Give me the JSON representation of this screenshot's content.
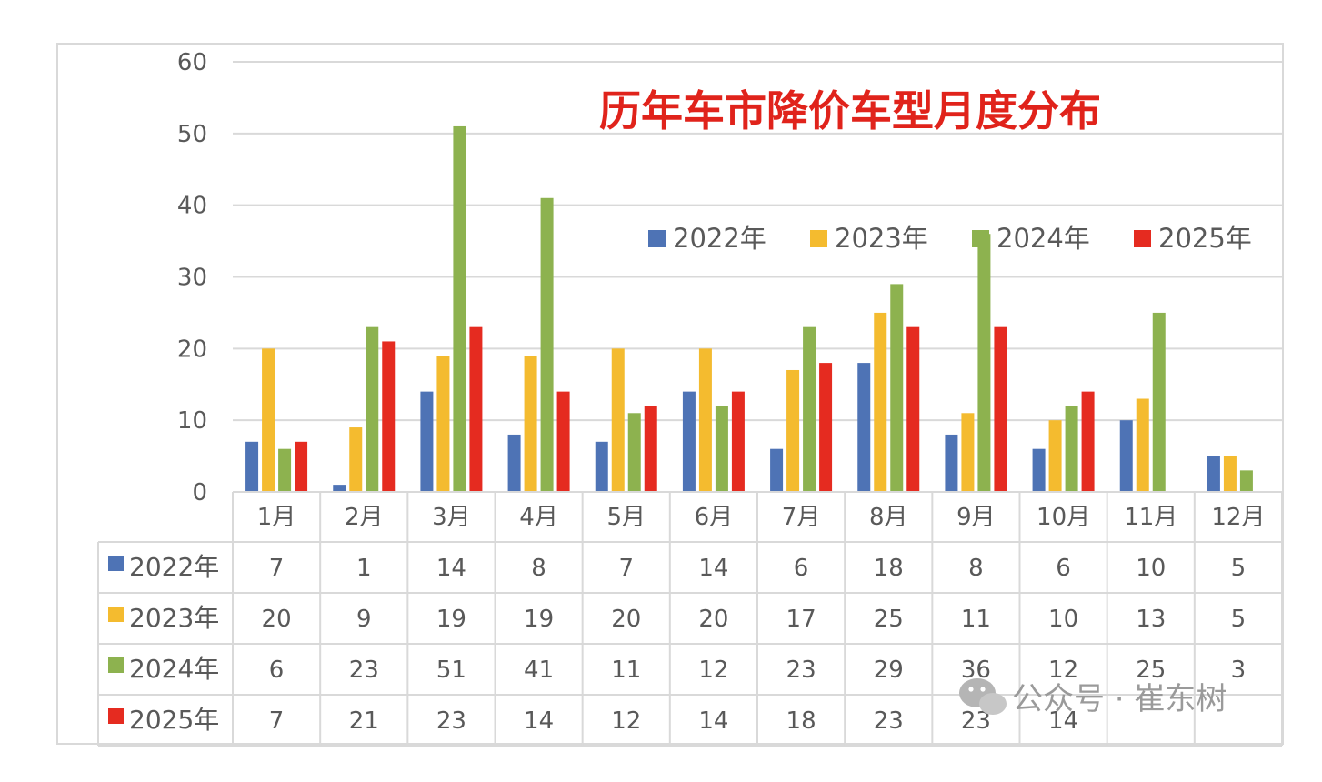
{
  "chart_data": {
    "type": "bar",
    "title": "历年车市降价车型月度分布",
    "categories": [
      "1月",
      "2月",
      "3月",
      "4月",
      "5月",
      "6月",
      "7月",
      "8月",
      "9月",
      "10月",
      "11月",
      "12月"
    ],
    "ylim": [
      0,
      60
    ],
    "yticks": [
      "0",
      "10",
      "20",
      "30",
      "40",
      "50",
      "60"
    ],
    "grid": true,
    "legend_position": "top-right",
    "series": [
      {
        "name": "2022年",
        "color": "#4e73b5",
        "values": [
          7,
          1,
          14,
          8,
          7,
          14,
          6,
          18,
          8,
          6,
          10,
          5
        ]
      },
      {
        "name": "2023年",
        "color": "#f4bb2f",
        "values": [
          20,
          9,
          19,
          19,
          20,
          20,
          17,
          25,
          11,
          10,
          13,
          5
        ]
      },
      {
        "name": "2024年",
        "color": "#8db24f",
        "values": [
          6,
          23,
          51,
          41,
          11,
          12,
          23,
          29,
          36,
          12,
          25,
          3
        ]
      },
      {
        "name": "2025年",
        "color": "#e52b20",
        "values": [
          7,
          21,
          23,
          14,
          12,
          14,
          18,
          23,
          23,
          14,
          null,
          null
        ]
      }
    ],
    "table": {
      "rows": [
        {
          "label": "2022年",
          "cells": [
            "7",
            "1",
            "14",
            "8",
            "7",
            "14",
            "6",
            "18",
            "8",
            "6",
            "10",
            "5"
          ]
        },
        {
          "label": "2023年",
          "cells": [
            "20",
            "9",
            "19",
            "19",
            "20",
            "20",
            "17",
            "25",
            "11",
            "10",
            "13",
            "5"
          ]
        },
        {
          "label": "2024年",
          "cells": [
            "6",
            "23",
            "51",
            "41",
            "11",
            "12",
            "23",
            "29",
            "36",
            "12",
            "25",
            "3"
          ]
        },
        {
          "label": "2025年",
          "cells": [
            "7",
            "21",
            "23",
            "14",
            "12",
            "14",
            "18",
            "23",
            "23",
            "14",
            "",
            ""
          ]
        }
      ]
    }
  },
  "watermark": {
    "text": "公众号 · 崔东树",
    "icon": "wechat-icon"
  }
}
